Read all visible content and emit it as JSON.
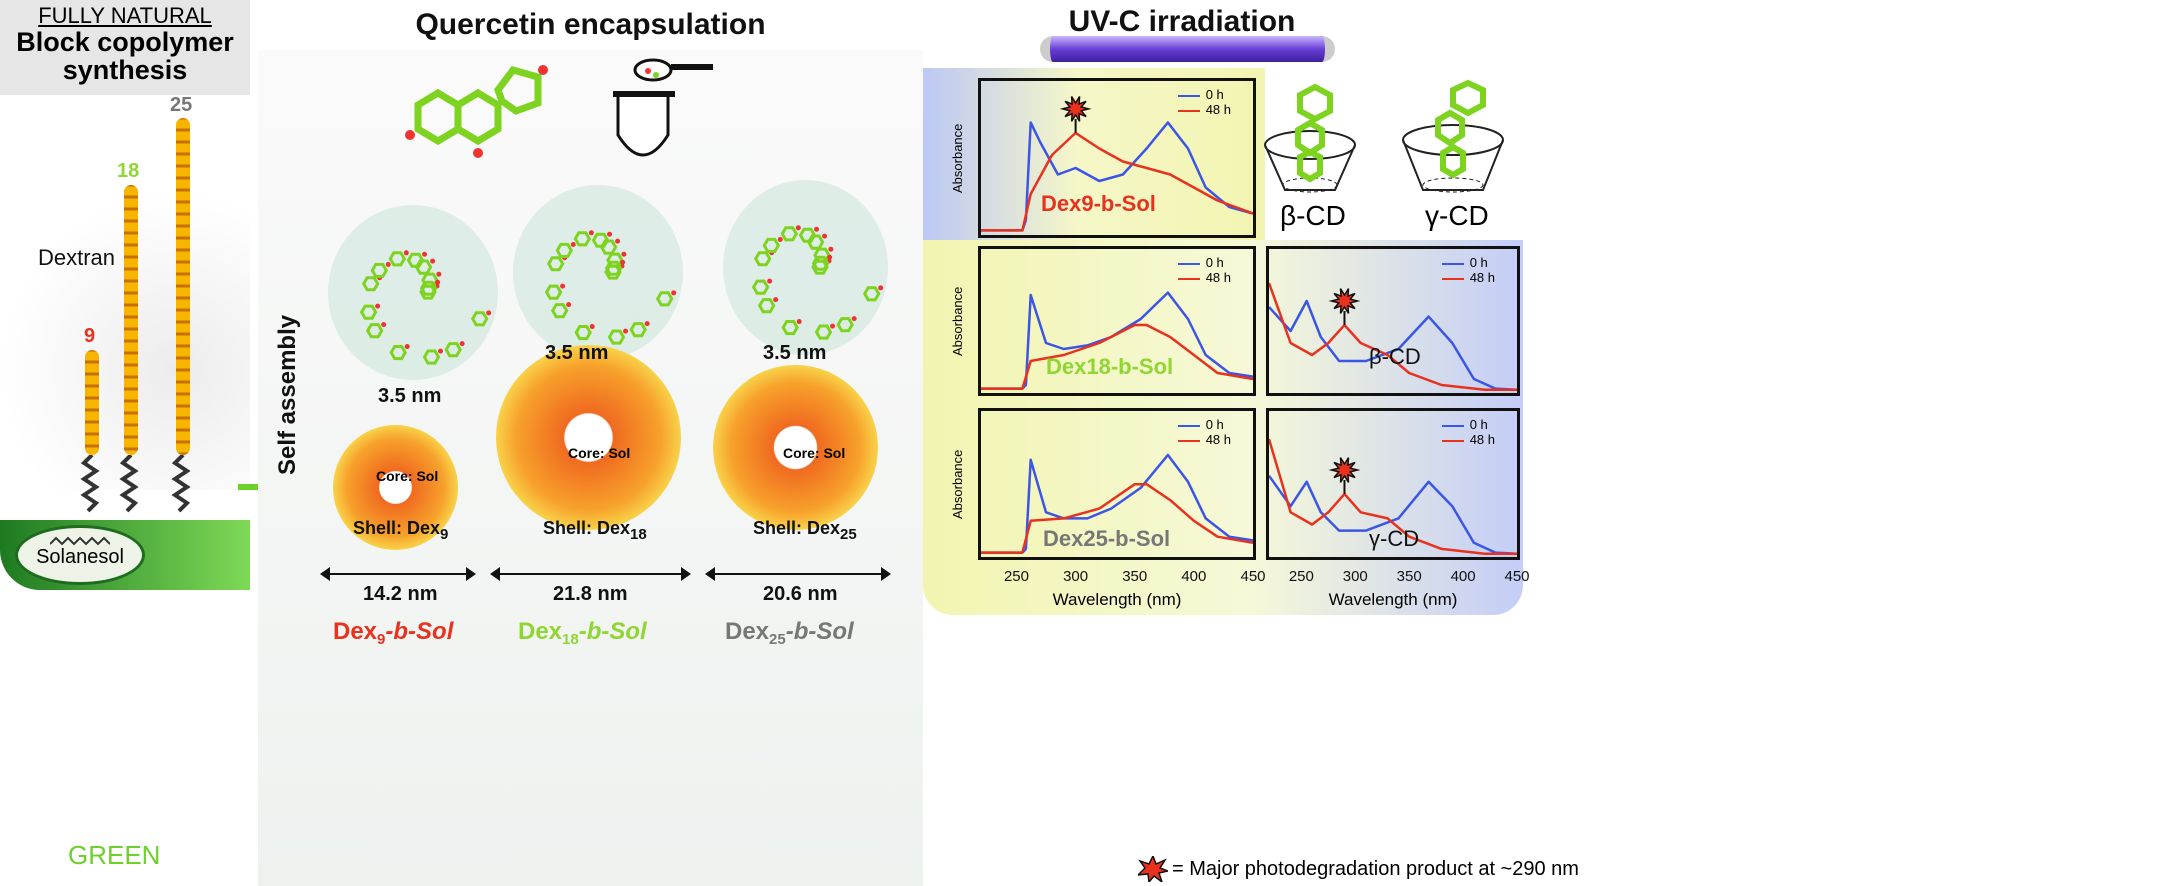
{
  "left": {
    "heading_top": "FULLY NATURAL",
    "heading_main": "Block copolymer synthesis",
    "dextran_label": "Dextran",
    "chain_lengths": [
      "9",
      "18",
      "25"
    ],
    "chain_colors": [
      "#e8321e",
      "#8fd633",
      "#777777"
    ],
    "solanesol_label": "Solanesol",
    "green_label": "GREEN"
  },
  "middle": {
    "title": "Quercetin encapsulation",
    "self_assembly": "Self assembly",
    "micelles": [
      {
        "core_gap": "3.5 nm",
        "core": "Core: Sol",
        "shell": "Shell: Dex",
        "shell_sub": "9",
        "size": "14.2 nm",
        "name_a": "Dex",
        "name_sub": "9",
        "name_b": "-b-Sol",
        "color": "#e8321e"
      },
      {
        "core_gap": "3.5 nm",
        "core": "Core: Sol",
        "shell": "Shell: Dex",
        "shell_sub": "18",
        "size": "21.8 nm",
        "name_a": "Dex",
        "name_sub": "18",
        "name_b": "-b-Sol",
        "color": "#8fd633"
      },
      {
        "core_gap": "3.5 nm",
        "core": "Core: Sol",
        "shell": "Shell: Dex",
        "shell_sub": "25",
        "size": "20.6 nm",
        "name_a": "Dex",
        "name_sub": "25",
        "name_b": "-b-Sol",
        "color": "#777777"
      }
    ]
  },
  "right": {
    "title": "UV-C irradiation",
    "beta_cd": "β-CD",
    "gamma_cd": "γ-CD",
    "footnote": "= Major photodegradation product at ~290 nm"
  },
  "chart_data": [
    {
      "type": "line",
      "title": "Dex9-b-Sol",
      "title_color": "#e8321e",
      "ylabel": "Absorbance",
      "xlabel": "",
      "xlim": [
        220,
        450
      ],
      "ylim": [
        0,
        1
      ],
      "marker_at": 300,
      "series": [
        {
          "name": "0 h",
          "color": "#3b55e6",
          "x": [
            220,
            255,
            258,
            262,
            270,
            285,
            300,
            320,
            340,
            360,
            378,
            395,
            410,
            430,
            450
          ],
          "y": [
            0.02,
            0.02,
            0.1,
            0.85,
            0.7,
            0.45,
            0.5,
            0.4,
            0.45,
            0.65,
            0.85,
            0.65,
            0.35,
            0.2,
            0.15
          ]
        },
        {
          "name": "48 h",
          "color": "#e8321e",
          "x": [
            220,
            255,
            262,
            280,
            300,
            320,
            340,
            360,
            380,
            400,
            420,
            450
          ],
          "y": [
            0.02,
            0.02,
            0.3,
            0.6,
            0.77,
            0.65,
            0.55,
            0.5,
            0.45,
            0.35,
            0.25,
            0.15
          ]
        }
      ]
    },
    {
      "type": "line",
      "title": "Dex18-b-Sol",
      "title_color": "#8fd633",
      "ylabel": "Absorbance",
      "xlabel": "",
      "xlim": [
        220,
        450
      ],
      "ylim": [
        0,
        1
      ],
      "series": [
        {
          "name": "0 h",
          "color": "#3b55e6",
          "x": [
            220,
            255,
            258,
            262,
            275,
            290,
            310,
            330,
            355,
            378,
            395,
            410,
            430,
            450
          ],
          "y": [
            0.02,
            0.02,
            0.05,
            0.8,
            0.4,
            0.35,
            0.38,
            0.45,
            0.6,
            0.82,
            0.6,
            0.3,
            0.15,
            0.12
          ]
        },
        {
          "name": "48 h",
          "color": "#e8321e",
          "x": [
            220,
            255,
            262,
            290,
            320,
            350,
            360,
            380,
            400,
            420,
            450
          ],
          "y": [
            0.02,
            0.02,
            0.25,
            0.3,
            0.4,
            0.55,
            0.55,
            0.45,
            0.3,
            0.15,
            0.1
          ]
        }
      ]
    },
    {
      "type": "line",
      "title": "Dex25-b-Sol",
      "title_color": "#777777",
      "ylabel": "Absorbance",
      "xlabel": "Wavelength (nm)",
      "xlim": [
        220,
        450
      ],
      "ylim": [
        0,
        1
      ],
      "ticks": [
        250,
        300,
        350,
        400,
        450
      ],
      "series": [
        {
          "name": "0 h",
          "color": "#3b55e6",
          "x": [
            220,
            255,
            258,
            262,
            275,
            290,
            310,
            330,
            355,
            378,
            395,
            410,
            430,
            450
          ],
          "y": [
            0.02,
            0.02,
            0.05,
            0.78,
            0.35,
            0.3,
            0.3,
            0.38,
            0.55,
            0.82,
            0.6,
            0.3,
            0.15,
            0.12
          ]
        },
        {
          "name": "48 h",
          "color": "#e8321e",
          "x": [
            220,
            255,
            262,
            290,
            320,
            350,
            360,
            380,
            400,
            420,
            450
          ],
          "y": [
            0.02,
            0.02,
            0.28,
            0.3,
            0.38,
            0.58,
            0.58,
            0.45,
            0.28,
            0.15,
            0.1
          ]
        }
      ]
    },
    {
      "type": "line",
      "title": "β-CD",
      "title_color": "#111111",
      "ylabel": "",
      "xlabel": "",
      "xlim": [
        220,
        450
      ],
      "ylim": [
        0,
        1
      ],
      "marker_at": 290,
      "series": [
        {
          "name": "0 h",
          "color": "#3b55e6",
          "x": [
            220,
            240,
            255,
            268,
            285,
            310,
            340,
            368,
            390,
            410,
            430,
            450
          ],
          "y": [
            0.7,
            0.5,
            0.75,
            0.45,
            0.25,
            0.25,
            0.35,
            0.62,
            0.4,
            0.1,
            0.02,
            0.01
          ]
        },
        {
          "name": "48 h",
          "color": "#e8321e",
          "x": [
            220,
            240,
            260,
            275,
            290,
            305,
            330,
            350,
            380,
            420,
            450
          ],
          "y": [
            0.9,
            0.4,
            0.3,
            0.4,
            0.55,
            0.4,
            0.3,
            0.15,
            0.05,
            0.01,
            0.01
          ]
        }
      ]
    },
    {
      "type": "line",
      "title": "γ-CD",
      "title_color": "#111111",
      "ylabel": "",
      "xlabel": "Wavelength (nm)",
      "xlim": [
        220,
        450
      ],
      "ylim": [
        0,
        1
      ],
      "marker_at": 290,
      "ticks": [
        250,
        300,
        350,
        400,
        450
      ],
      "series": [
        {
          "name": "0 h",
          "color": "#3b55e6",
          "x": [
            220,
            240,
            255,
            268,
            285,
            310,
            340,
            368,
            390,
            410,
            430,
            450
          ],
          "y": [
            0.65,
            0.4,
            0.6,
            0.35,
            0.2,
            0.2,
            0.3,
            0.6,
            0.4,
            0.1,
            0.02,
            0.01
          ]
        },
        {
          "name": "48 h",
          "color": "#e8321e",
          "x": [
            220,
            240,
            260,
            275,
            290,
            305,
            330,
            350,
            380,
            420,
            450
          ],
          "y": [
            0.95,
            0.35,
            0.25,
            0.35,
            0.5,
            0.35,
            0.3,
            0.15,
            0.05,
            0.01,
            0.01
          ]
        }
      ]
    }
  ]
}
